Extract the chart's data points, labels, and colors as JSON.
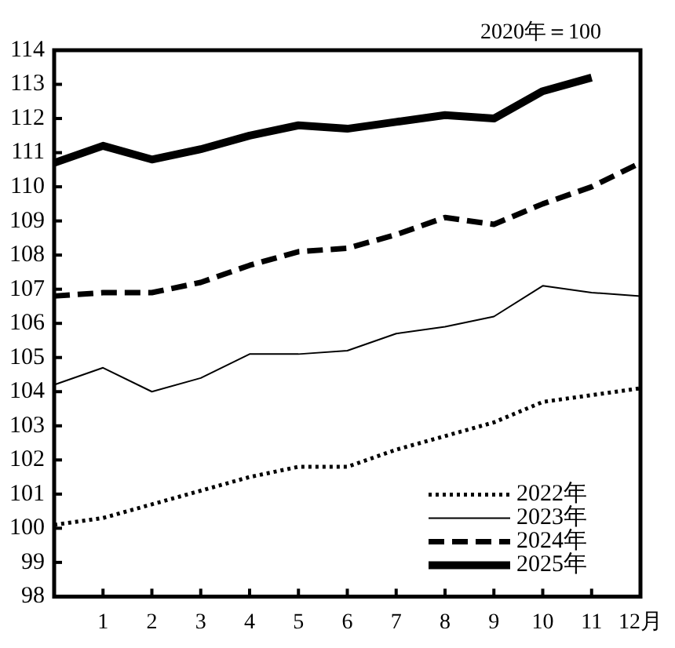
{
  "chart_data": {
    "type": "line",
    "annotations": [
      "2020年＝100"
    ],
    "categories": [
      null,
      "1",
      "2",
      "3",
      "4",
      "5",
      "6",
      "7",
      "8",
      "9",
      "10",
      "11",
      "12月"
    ],
    "series": [
      {
        "name": "2022年",
        "color": "#000000",
        "line_style": "dotted",
        "values": [
          100.1,
          100.3,
          100.7,
          101.1,
          101.5,
          101.8,
          101.8,
          102.3,
          102.7,
          103.1,
          103.7,
          103.9,
          104.1
        ]
      },
      {
        "name": "2023年",
        "color": "#000000",
        "line_style": "solid",
        "values": [
          104.2,
          104.7,
          104.0,
          104.4,
          105.1,
          105.1,
          105.2,
          105.7,
          105.9,
          106.2,
          107.1,
          106.9,
          106.8
        ]
      },
      {
        "name": "2024年",
        "color": "#000000",
        "line_style": "dashed",
        "values": [
          106.8,
          106.9,
          106.9,
          107.2,
          107.7,
          108.1,
          108.2,
          108.6,
          109.1,
          108.9,
          109.5,
          110.0,
          110.7
        ]
      },
      {
        "name": "2025年",
        "color": "#000000",
        "line_style": "solid",
        "values": [
          110.7,
          111.2,
          110.8,
          111.1,
          111.5,
          111.8,
          111.7,
          111.9,
          112.1,
          112.0,
          112.8,
          113.2,
          null
        ]
      }
    ],
    "ylim": [
      98,
      114
    ],
    "yticks": [
      98,
      99,
      100,
      101,
      102,
      103,
      104,
      105,
      106,
      107,
      108,
      109,
      110,
      111,
      112,
      113,
      114
    ],
    "grid": false,
    "legend": "bottom right",
    "marker": "none"
  }
}
